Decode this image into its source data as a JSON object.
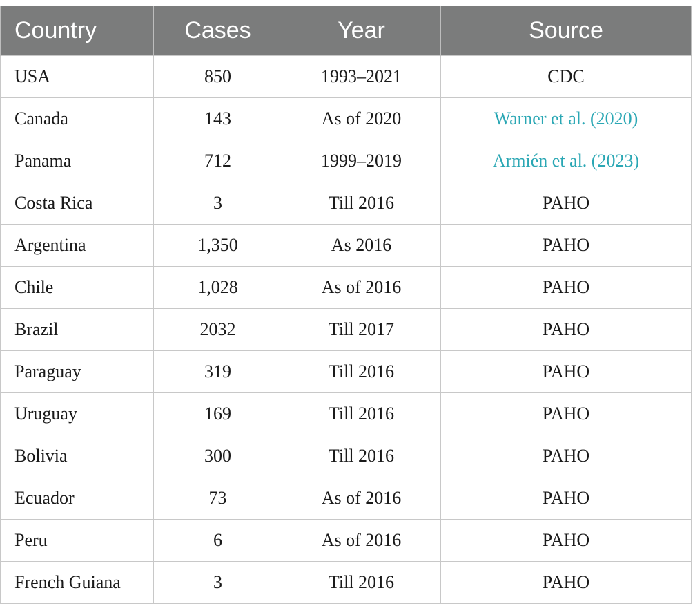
{
  "table": {
    "headers": [
      "Country",
      "Cases",
      "Year",
      "Source"
    ],
    "rows": [
      {
        "country": "USA",
        "cases": "850",
        "year": "1993–2021",
        "source": "CDC",
        "link": false
      },
      {
        "country": "Canada",
        "cases": "143",
        "year": "As of 2020",
        "source": "Warner et al. (2020)",
        "link": true
      },
      {
        "country": "Panama",
        "cases": "712",
        "year": "1999–2019",
        "source": "Armién et al. (2023)",
        "link": true
      },
      {
        "country": "Costa Rica",
        "cases": "3",
        "year": "Till 2016",
        "source": "PAHO",
        "link": false
      },
      {
        "country": "Argentina",
        "cases": "1,350",
        "year": "As 2016",
        "source": "PAHO",
        "link": false
      },
      {
        "country": "Chile",
        "cases": "1,028",
        "year": "As of 2016",
        "source": "PAHO",
        "link": false
      },
      {
        "country": "Brazil",
        "cases": "2032",
        "year": "Till 2017",
        "source": "PAHO",
        "link": false
      },
      {
        "country": "Paraguay",
        "cases": "319",
        "year": "Till 2016",
        "source": "PAHO",
        "link": false
      },
      {
        "country": "Uruguay",
        "cases": "169",
        "year": "Till 2016",
        "source": "PAHO",
        "link": false
      },
      {
        "country": "Bolivia",
        "cases": "300",
        "year": "Till 2016",
        "source": "PAHO",
        "link": false
      },
      {
        "country": "Ecuador",
        "cases": "73",
        "year": "As of 2016",
        "source": "PAHO",
        "link": false
      },
      {
        "country": "Peru",
        "cases": "6",
        "year": "As of 2016",
        "source": "PAHO",
        "link": false
      },
      {
        "country": "French Guiana",
        "cases": "3",
        "year": "Till 2016",
        "source": "PAHO",
        "link": false
      }
    ],
    "colors": {
      "header_bg": "#7b7c7c",
      "link": "#2aa7b4"
    }
  }
}
